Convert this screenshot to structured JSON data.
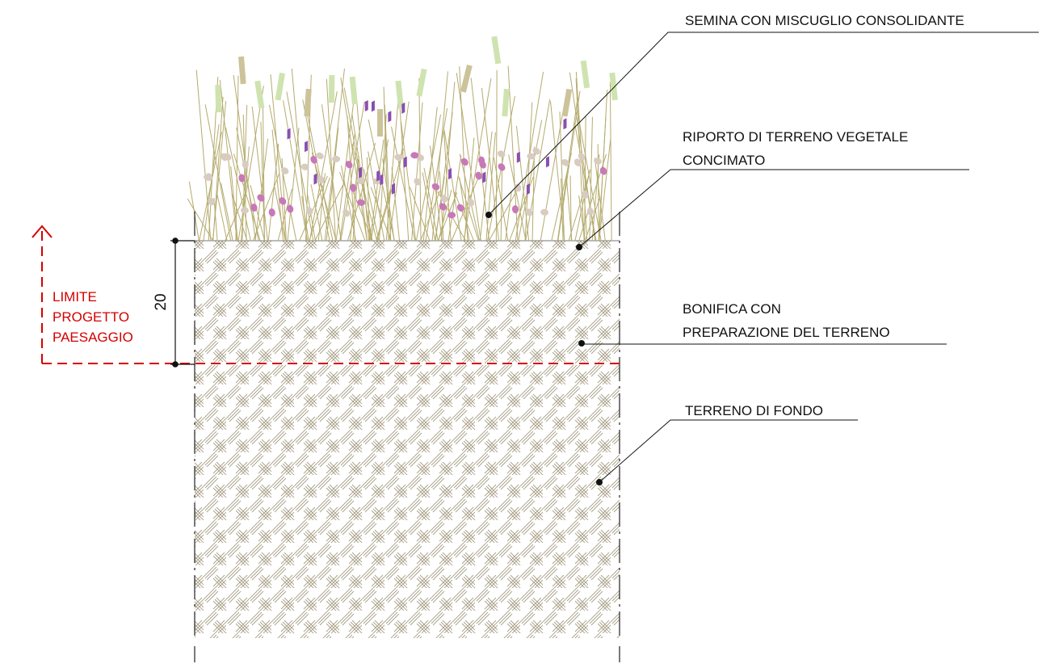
{
  "labels": {
    "seeding": "SEMINA CON MISCUGLIO CONSOLIDANTE",
    "topsoil_line1": "RIPORTO DI TERRENO VEGETALE",
    "topsoil_line2": "CONCIMATO",
    "reclamation_line1": "BONIFICA CON",
    "reclamation_line2": "PREPARAZIONE DEL TERRENO",
    "subsoil": "TERRENO DI FONDO"
  },
  "limit": {
    "line1": "LIMITE",
    "line2": "PROGETTO",
    "line3": "PAESAGGIO"
  },
  "dimension": {
    "value": "20"
  },
  "colors": {
    "hatch": "#a89f86",
    "limit_red": "#d40000",
    "grass": "#b5ab6e",
    "grass_light": "#cfe3b0",
    "grass_tan": "#cdc39a",
    "flower_pink": "#c878b8",
    "flower_violet": "#8a4fb0",
    "seed_beige": "#d8ccc0"
  }
}
